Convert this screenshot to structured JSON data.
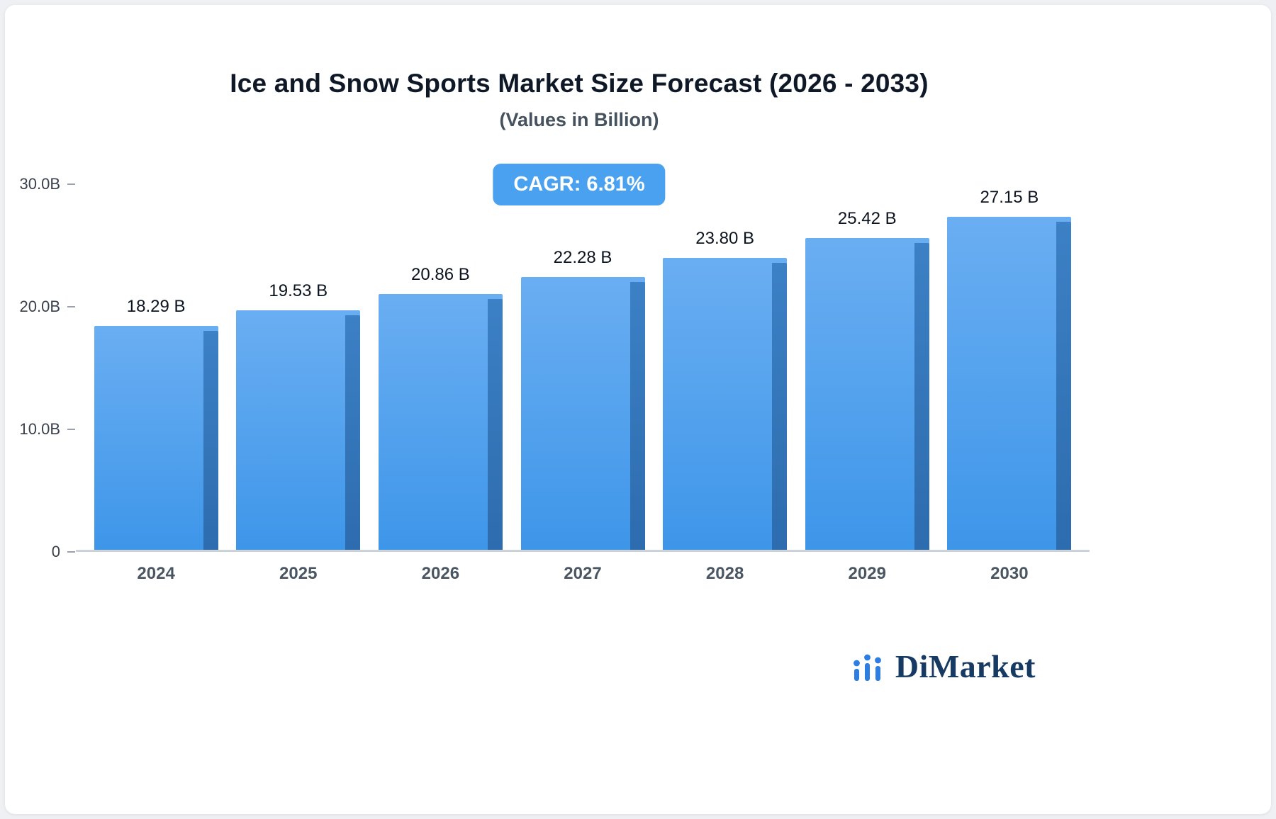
{
  "chart_data": {
    "type": "bar",
    "title": "Ice and Snow Sports Market Size Forecast (2026 - 2033)",
    "subtitle": "(Values in Billion)",
    "annotation_badge": "CAGR: 6.81%",
    "categories": [
      "2024",
      "2025",
      "2026",
      "2027",
      "2028",
      "2029",
      "2030"
    ],
    "values": [
      18.29,
      19.53,
      20.86,
      22.28,
      23.8,
      25.42,
      27.15
    ],
    "value_labels": [
      "18.29 B",
      "19.53 B",
      "20.86 B",
      "22.28 B",
      "23.80 B",
      "25.42 B",
      "27.15 B"
    ],
    "ylim": [
      0,
      30
    ],
    "yticks": [
      0,
      10,
      20,
      30
    ],
    "ytick_labels": [
      "0",
      "10.0B",
      "20.0B",
      "30.0B"
    ],
    "grid": false,
    "legend": "none",
    "colors": {
      "bar_face_top": "#6aaef2",
      "bar_face_bottom": "#3e96e9",
      "bar_side": "#2d6cae",
      "badge_background": "#4aa1f0",
      "axis_line": "#ccd2d9"
    }
  },
  "branding": {
    "logo_text": "DiMarket",
    "logo_icon": "bar-chart-icon",
    "logo_text_color": "#173a63",
    "logo_icon_color": "#2d7ee2"
  }
}
